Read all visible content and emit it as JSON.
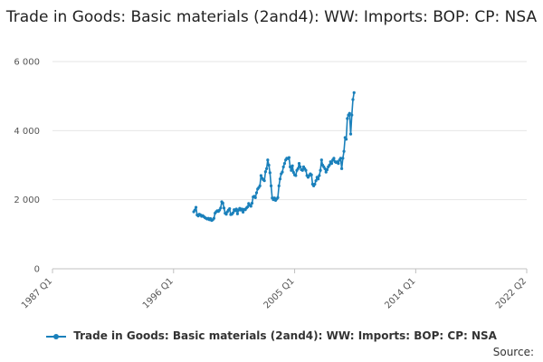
{
  "title": "Trade in Goods: Basic materials (2and4): WW: Imports: BOP: CP: NSA",
  "source_label": "Source:",
  "colors": {
    "series": "#1a80bb",
    "grid": "#e6e6e6",
    "axis": "#c0c0c0"
  },
  "chart_data": {
    "type": "line",
    "title": "Trade in Goods: Basic materials (2and4): WW: Imports: BOP: CP: NSA",
    "xlabel": "",
    "ylabel": "",
    "x_ticks": [
      "1987 Q1",
      "1996 Q1",
      "2005 Q1",
      "2014 Q1",
      "2022 Q2"
    ],
    "y_ticks": [
      0,
      2000,
      4000,
      6000
    ],
    "y_tick_labels": [
      "0",
      "2 000",
      "4 000",
      "6 000"
    ],
    "ylim": [
      0,
      6000
    ],
    "xlim": [
      "1987 Q1",
      "2022 Q2"
    ],
    "grid": "horizontal",
    "legend_position": "bottom",
    "series": [
      {
        "name": "Trade in Goods: Basic materials (2and4): WW: Imports: BOP: CP: NSA",
        "frequency": "monthly",
        "start": "1997-07",
        "values": [
          1650,
          1700,
          1780,
          1560,
          1530,
          1580,
          1560,
          1520,
          1540,
          1510,
          1480,
          1460,
          1440,
          1460,
          1420,
          1450,
          1400,
          1420,
          1460,
          1610,
          1650,
          1680,
          1660,
          1700,
          1760,
          1940,
          1900,
          1760,
          1610,
          1580,
          1650,
          1700,
          1740,
          1570,
          1580,
          1620,
          1710,
          1680,
          1730,
          1590,
          1700,
          1750,
          1700,
          1730,
          1640,
          1720,
          1710,
          1760,
          1790,
          1890,
          1840,
          1810,
          1900,
          2080,
          2100,
          2060,
          2200,
          2310,
          2350,
          2400,
          2700,
          2620,
          2580,
          2550,
          2810,
          2900,
          3150,
          3000,
          2780,
          2400,
          2050,
          2000,
          2050,
          1980,
          2020,
          2060,
          2400,
          2600,
          2750,
          2800,
          2950,
          3050,
          3150,
          3200,
          3190,
          3220,
          2950,
          2850,
          2980,
          2790,
          2720,
          2700,
          2850,
          2900,
          3050,
          2950,
          2870,
          2850,
          2950,
          2900,
          2850,
          2700,
          2650,
          2700,
          2750,
          2720,
          2450,
          2400,
          2450,
          2550,
          2650,
          2600,
          2700,
          2850,
          3150,
          3000,
          2950,
          2900,
          2800,
          2870,
          2950,
          3000,
          3100,
          3050,
          3150,
          3200,
          3100,
          3080,
          3100,
          3050,
          3150,
          3200,
          2900,
          3200,
          3400,
          3800,
          3750,
          4350,
          4450,
          4500,
          3900,
          4450,
          4900,
          5100
        ]
      }
    ]
  }
}
